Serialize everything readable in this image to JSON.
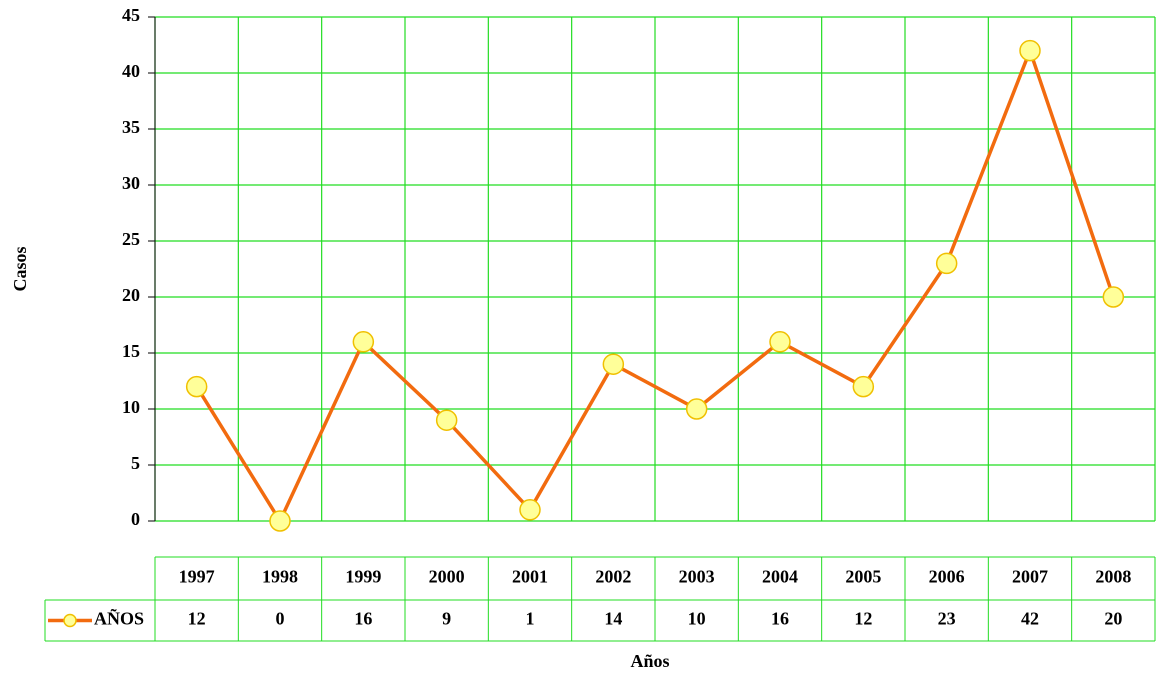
{
  "chart_data": {
    "type": "line",
    "x_label": "Años",
    "y_label": "Casos",
    "categories": [
      "1997",
      "1998",
      "1999",
      "2000",
      "2001",
      "2002",
      "2003",
      "2004",
      "2005",
      "2006",
      "2007",
      "2008"
    ],
    "series": [
      {
        "name": "AÑOS",
        "color": "#f26b0f",
        "marker_fill": "#ffff99",
        "marker_stroke": "#f0c000",
        "values": [
          12,
          0,
          16,
          9,
          1,
          14,
          10,
          16,
          12,
          23,
          42,
          20
        ]
      }
    ],
    "ylim": [
      0,
      45
    ],
    "yticks": [
      0,
      5,
      10,
      15,
      20,
      25,
      30,
      35,
      40,
      45
    ],
    "grid": true,
    "grid_color": "#22dd22",
    "data_table": true
  }
}
